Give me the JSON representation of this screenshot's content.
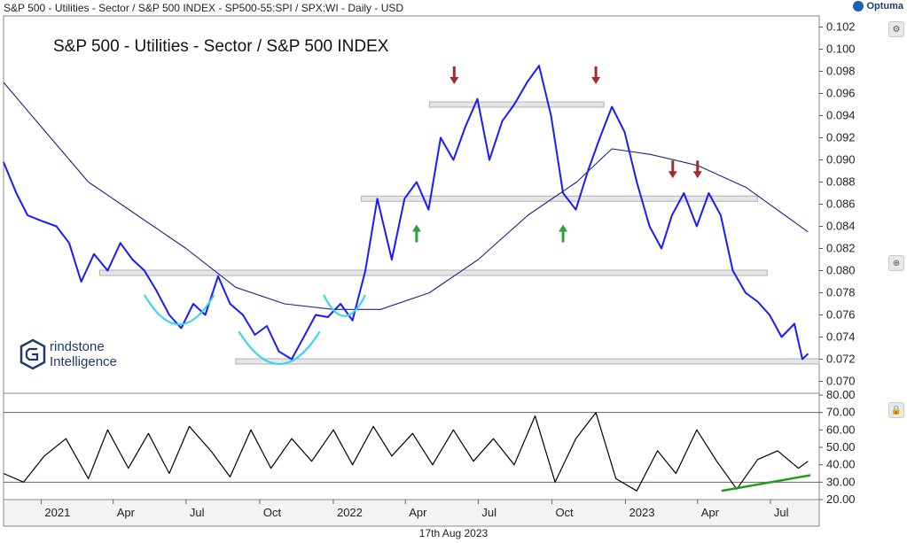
{
  "header": {
    "title": "S&P 500 - Utilities - Sector / S&P 500 INDEX - SP500-55:SPI / SPX:WI - Daily - USD",
    "brand": "Optuma"
  },
  "chart_title": "S&P 500 - Utilities - Sector / S&P 500 INDEX",
  "footer_date": "17th Aug 2023",
  "watermark": {
    "line1": "rindstone",
    "line2": "Intelligence"
  },
  "colors": {
    "price": "#1a1aff",
    "moving_average": "#202080",
    "rsi": "#000000",
    "band": "#cfcfcf",
    "arrow_down": "#a52a2a",
    "arrow_up": "#2ea043",
    "arc": "#38d6e8",
    "rsi_trend": "#1e9e1e"
  },
  "chart_data": [
    {
      "type": "line",
      "title": "S&P 500 - Utilities - Sector / S&P 500 INDEX",
      "x_ticks": [
        "2021",
        "Apr",
        "Jul",
        "Oct",
        "2022",
        "Apr",
        "Jul",
        "Oct",
        "2023",
        "Apr",
        "Jul"
      ],
      "x_range": [
        "2020-11-15",
        "2023-08-31"
      ],
      "ylim": [
        0.069,
        0.103
      ],
      "y_ticks": [
        "0.070",
        "0.072",
        "0.074",
        "0.076",
        "0.078",
        "0.080",
        "0.082",
        "0.084",
        "0.086",
        "0.088",
        "0.090",
        "0.092",
        "0.094",
        "0.096",
        "0.098",
        "0.100",
        "0.102"
      ],
      "series": [
        {
          "x": [
            "2020-11-15",
            "2020-12-01",
            "2020-12-15",
            "2021-01-01",
            "2021-01-20",
            "2021-02-05",
            "2021-02-20",
            "2021-03-08",
            "2021-03-25",
            "2021-04-10",
            "2021-04-25",
            "2021-05-10",
            "2021-05-25",
            "2021-06-10",
            "2021-06-25",
            "2021-07-10",
            "2021-07-25",
            "2021-08-10",
            "2021-08-25",
            "2021-09-10",
            "2021-09-25",
            "2021-10-10",
            "2021-10-25",
            "2021-11-10",
            "2021-11-25",
            "2021-12-10",
            "2021-12-25",
            "2022-01-10",
            "2022-01-25",
            "2022-02-10",
            "2022-02-25",
            "2022-03-15",
            "2022-03-31",
            "2022-04-15",
            "2022-04-30",
            "2022-05-15",
            "2022-05-31",
            "2022-06-15",
            "2022-06-30",
            "2022-07-15",
            "2022-07-31",
            "2022-08-15",
            "2022-08-31",
            "2022-09-15",
            "2022-09-30",
            "2022-10-15",
            "2022-10-31",
            "2022-11-15",
            "2022-11-30",
            "2022-12-15",
            "2022-12-31",
            "2023-01-15",
            "2023-01-31",
            "2023-02-15",
            "2023-02-28",
            "2023-03-15",
            "2023-03-31",
            "2023-04-15",
            "2023-04-30",
            "2023-05-15",
            "2023-05-31",
            "2023-06-15",
            "2023-06-30",
            "2023-07-15",
            "2023-07-31",
            "2023-08-10",
            "2023-08-17"
          ],
          "values": [
            0.0898,
            0.087,
            0.085,
            0.0845,
            0.084,
            0.0825,
            0.079,
            0.0815,
            0.08,
            0.0825,
            0.081,
            0.08,
            0.0782,
            0.076,
            0.0748,
            0.077,
            0.076,
            0.0795,
            0.077,
            0.076,
            0.0742,
            0.075,
            0.0727,
            0.072,
            0.074,
            0.076,
            0.0758,
            0.077,
            0.0755,
            0.08,
            0.0865,
            0.081,
            0.0865,
            0.088,
            0.0855,
            0.092,
            0.09,
            0.093,
            0.0955,
            0.09,
            0.0935,
            0.095,
            0.097,
            0.0985,
            0.094,
            0.087,
            0.0855,
            0.089,
            0.092,
            0.0948,
            0.0925,
            0.088,
            0.084,
            0.082,
            0.085,
            0.087,
            0.084,
            0.087,
            0.085,
            0.08,
            0.078,
            0.0772,
            0.076,
            0.074,
            0.0752,
            0.072,
            0.0725
          ]
        },
        {
          "x": [
            "2020-11-15",
            "2021-01-01",
            "2021-03-01",
            "2021-05-01",
            "2021-07-01",
            "2021-09-01",
            "2021-11-01",
            "2022-01-01",
            "2022-03-01",
            "2022-05-01",
            "2022-07-01",
            "2022-09-01",
            "2022-11-01",
            "2022-12-15",
            "2023-02-01",
            "2023-04-01",
            "2023-06-01",
            "2023-08-17"
          ],
          "values": [
            0.097,
            0.093,
            0.088,
            0.085,
            0.082,
            0.0785,
            0.077,
            0.0765,
            0.0765,
            0.078,
            0.081,
            0.085,
            0.088,
            0.091,
            0.0905,
            0.0895,
            0.0875,
            0.0835
          ]
        }
      ],
      "bands": [
        {
          "x_from": "2022-02-05",
          "x_to": "2023-06-15",
          "level": 0.0865
        },
        {
          "x_from": "2022-05-01",
          "x_to": "2022-12-05",
          "level": 0.095
        },
        {
          "x_from": "2021-03-15",
          "x_to": "2023-06-27",
          "level": 0.0798
        },
        {
          "x_from": "2021-09-01",
          "x_to": "2023-08-31",
          "level": 0.0718
        }
      ],
      "annotations": [
        {
          "kind": "arrow-down",
          "x": "2022-06-01",
          "value": 0.097
        },
        {
          "kind": "arrow-down",
          "x": "2022-11-25",
          "value": 0.097
        },
        {
          "kind": "arrow-down",
          "x": "2023-03-01",
          "value": 0.0885
        },
        {
          "kind": "arrow-down",
          "x": "2023-04-01",
          "value": 0.0885
        },
        {
          "kind": "arrow-up",
          "x": "2022-04-15",
          "value": 0.084
        },
        {
          "kind": "arrow-up",
          "x": "2022-10-15",
          "value": 0.084
        }
      ]
    },
    {
      "type": "line",
      "ylim": [
        20,
        80
      ],
      "y_ticks": [
        "20.00",
        "30.00",
        "40.00",
        "50.00",
        "60.00",
        "70.00",
        "80.00"
      ],
      "reference_lines": [
        70,
        30
      ],
      "series": [
        {
          "x": [
            "2020-11-15",
            "2020-12-10",
            "2021-01-05",
            "2021-02-01",
            "2021-03-01",
            "2021-03-25",
            "2021-04-20",
            "2021-05-15",
            "2021-06-10",
            "2021-07-05",
            "2021-08-01",
            "2021-08-25",
            "2021-09-20",
            "2021-10-15",
            "2021-11-10",
            "2021-12-05",
            "2022-01-01",
            "2022-01-25",
            "2022-02-20",
            "2022-03-15",
            "2022-04-10",
            "2022-05-05",
            "2022-05-31",
            "2022-06-25",
            "2022-07-20",
            "2022-08-15",
            "2022-09-10",
            "2022-10-05",
            "2022-10-31",
            "2022-11-25",
            "2022-12-20",
            "2023-01-15",
            "2023-02-10",
            "2023-03-05",
            "2023-03-31",
            "2023-04-25",
            "2023-05-20",
            "2023-06-15",
            "2023-07-10",
            "2023-08-05",
            "2023-08-17"
          ],
          "values": [
            35,
            30,
            45,
            55,
            32,
            60,
            38,
            58,
            35,
            62,
            48,
            33,
            60,
            38,
            55,
            42,
            60,
            40,
            62,
            45,
            58,
            40,
            60,
            42,
            55,
            40,
            68,
            30,
            55,
            70,
            32,
            25,
            48,
            35,
            60,
            42,
            26,
            43,
            48,
            38,
            42
          ]
        }
      ],
      "trendline": {
        "from": {
          "x": "2023-05-01",
          "value": 25
        },
        "to": {
          "x": "2023-08-20",
          "value": 34
        }
      }
    }
  ]
}
